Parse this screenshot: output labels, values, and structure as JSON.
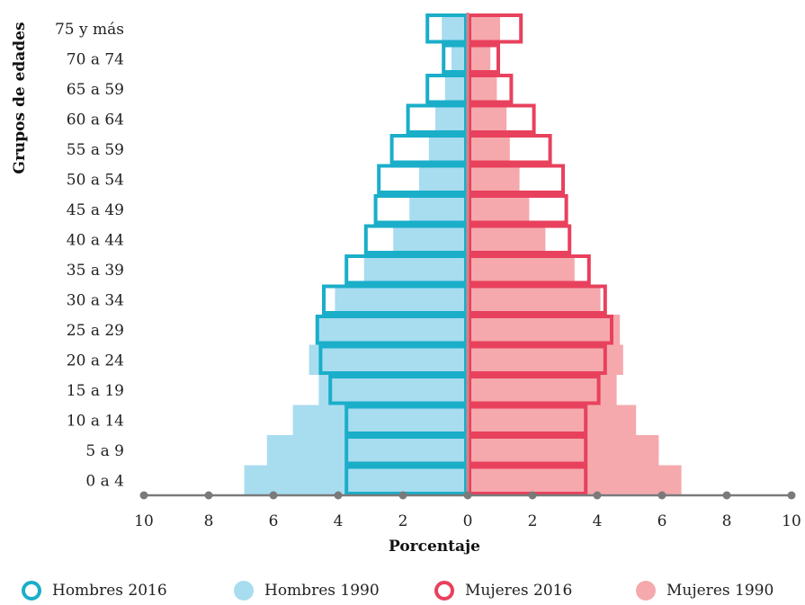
{
  "chart_data": {
    "type": "bar",
    "orientation": "horizontal",
    "subtype": "population-pyramid",
    "categories": [
      "0 a 4",
      "5 a 9",
      "10 a 14",
      "15 a 19",
      "20 a 24",
      "25 a 29",
      "30 a 34",
      "35 a 39",
      "40 a 44",
      "45 a 49",
      "50 a 54",
      "55 a 59",
      "60 a 64",
      "65 a 59",
      "70 a 74",
      "75 y más"
    ],
    "series": [
      {
        "name": "Hombres 2016",
        "side": "left",
        "style": "outline",
        "color": "#1aaec9",
        "values": [
          3.8,
          3.8,
          3.8,
          4.3,
          4.6,
          4.7,
          4.5,
          3.8,
          3.2,
          2.9,
          2.8,
          2.4,
          1.9,
          1.3,
          0.8,
          1.3
        ]
      },
      {
        "name": "Hombres 1990",
        "side": "left",
        "style": "filled",
        "color": "#a8dcef",
        "values": [
          6.9,
          6.2,
          5.4,
          4.6,
          4.9,
          4.7,
          4.1,
          3.2,
          2.3,
          1.8,
          1.5,
          1.2,
          1.0,
          0.7,
          0.5,
          0.8
        ]
      },
      {
        "name": "Mujeres 2016",
        "side": "right",
        "style": "outline",
        "color": "#e8415d",
        "values": [
          3.7,
          3.7,
          3.7,
          4.1,
          4.3,
          4.5,
          4.3,
          3.8,
          3.2,
          3.1,
          3.0,
          2.6,
          2.1,
          1.4,
          1.0,
          1.7
        ]
      },
      {
        "name": "Mujeres 1990",
        "side": "right",
        "style": "filled",
        "color": "#f5a9ad",
        "values": [
          6.6,
          5.9,
          5.2,
          4.6,
          4.8,
          4.7,
          4.1,
          3.3,
          2.4,
          1.9,
          1.6,
          1.3,
          1.2,
          0.9,
          0.7,
          1.0
        ]
      }
    ],
    "x_ticks": [
      "10",
      "8",
      "6",
      "4",
      "2",
      "0",
      "2",
      "4",
      "6",
      "8",
      "10"
    ],
    "xlim": [
      -10,
      10
    ],
    "xlabel": "Porcentaje",
    "ylabel": "Grupos de edades",
    "axis_color": "#7a7a7a",
    "grid": false,
    "legend_position": "bottom"
  }
}
